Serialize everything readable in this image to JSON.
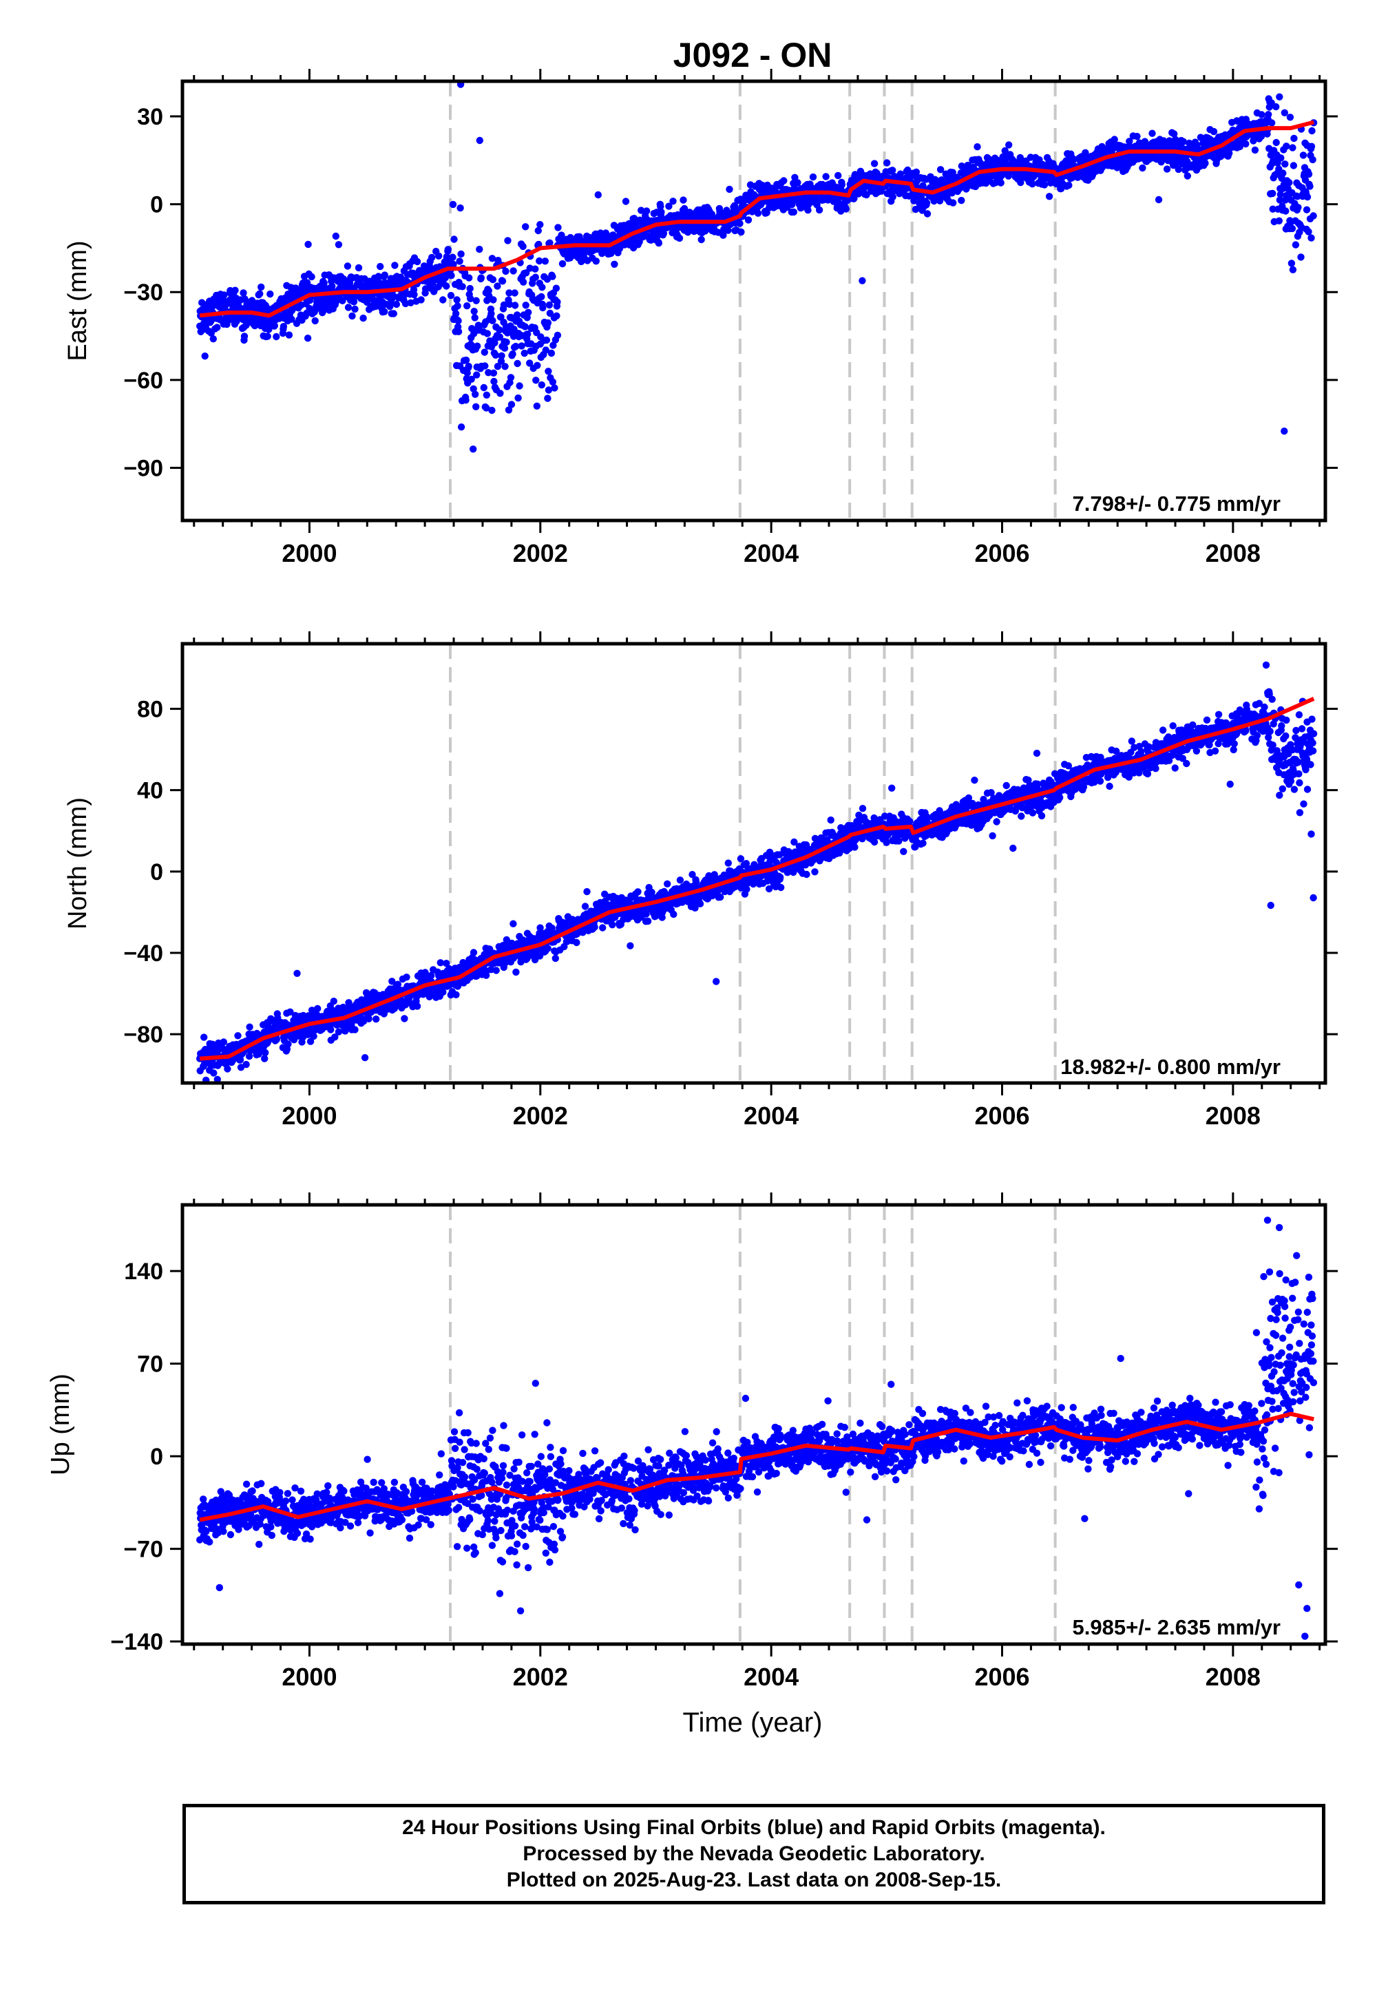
{
  "figure": {
    "title": "J092 - ON",
    "footer": [
      "24 Hour Positions Using Final Orbits (blue) and Rapid Orbits (magenta).",
      "Processed by the Nevada Geodetic Laboratory.",
      "Plotted on 2025-Aug-23. Last data on 2008-Sep-15."
    ]
  },
  "chart_data": [
    {
      "type": "scatter",
      "component": "East",
      "ylabel": "East (mm)",
      "xlabel": "",
      "xlim": [
        1998.9,
        2008.8
      ],
      "ylim": [
        -108,
        42
      ],
      "yticks": [
        -90,
        -60,
        -30,
        0,
        30
      ],
      "xticks": [
        2000,
        2002,
        2004,
        2006,
        2008
      ],
      "rate_label": "7.798+/- 0.775 mm/yr",
      "colors": {
        "points": "#0000ff",
        "model": "#ff0000",
        "steps": "#c8c8c8"
      },
      "step_epochs": [
        2001.22,
        2003.73,
        2004.68,
        2004.98,
        2005.22,
        2006.46
      ],
      "model_x": [
        1999.05,
        1999.3,
        1999.5,
        1999.65,
        1999.8,
        2000.0,
        2000.3,
        2000.5,
        2000.8,
        2001.0,
        2001.2,
        2001.4,
        2001.6,
        2001.8,
        2002.0,
        2002.3,
        2002.6,
        2002.8,
        2003.0,
        2003.2,
        2003.4,
        2003.6,
        2003.73,
        2003.74,
        2003.9,
        2004.1,
        2004.3,
        2004.5,
        2004.67,
        2004.69,
        2004.8,
        2004.97,
        2004.99,
        2005.21,
        2005.23,
        2005.4,
        2005.6,
        2005.8,
        2006.0,
        2006.2,
        2006.45,
        2006.47,
        2006.7,
        2006.9,
        2007.1,
        2007.3,
        2007.5,
        2007.7,
        2007.9,
        2008.1,
        2008.3,
        2008.5,
        2008.7
      ],
      "model_y": [
        -38,
        -37,
        -37,
        -38,
        -35,
        -31,
        -30,
        -30,
        -29,
        -25,
        -22,
        -22,
        -22,
        -19,
        -15,
        -14,
        -14,
        -10,
        -7,
        -6,
        -6,
        -6,
        -4,
        -3,
        2,
        3,
        4,
        4,
        3,
        5,
        8,
        7,
        8,
        7,
        5,
        4,
        7,
        11,
        12,
        12,
        11,
        10,
        13,
        16,
        18,
        18,
        18,
        17,
        20,
        25,
        26,
        26,
        28
      ],
      "scatter_segments": [
        {
          "x": [
            1999.05,
            2001.22
          ],
          "noise": 3.5,
          "outliers": 0.01
        },
        {
          "x": [
            2001.22,
            2002.15
          ],
          "noise": 14,
          "offset": -22,
          "outliers": 0.02
        },
        {
          "x": [
            2002.15,
            2003.73
          ],
          "noise": 2.5,
          "outliers": 0.005
        },
        {
          "x": [
            2003.73,
            2008.3
          ],
          "noise": 2.5,
          "outliers": 0.005
        },
        {
          "x": [
            2008.3,
            2008.7
          ],
          "noise": 12,
          "offset": -20,
          "outliers": 0.03
        }
      ]
    },
    {
      "type": "scatter",
      "component": "North",
      "ylabel": "North (mm)",
      "xlabel": "",
      "xlim": [
        1998.9,
        2008.8
      ],
      "ylim": [
        -104,
        112
      ],
      "yticks": [
        -80,
        -40,
        0,
        40,
        80
      ],
      "xticks": [
        2000,
        2002,
        2004,
        2006,
        2008
      ],
      "rate_label": "18.982+/- 0.800 mm/yr",
      "colors": {
        "points": "#0000ff",
        "model": "#ff0000",
        "steps": "#c8c8c8"
      },
      "step_epochs": [
        2001.22,
        2003.73,
        2004.68,
        2004.98,
        2005.22,
        2006.46
      ],
      "model_x": [
        1999.05,
        1999.3,
        1999.6,
        2000.0,
        2000.3,
        2000.7,
        2001.0,
        2001.3,
        2001.6,
        2002.0,
        2002.3,
        2002.6,
        2003.0,
        2003.4,
        2003.73,
        2003.74,
        2004.0,
        2004.3,
        2004.67,
        2004.69,
        2004.97,
        2004.99,
        2005.21,
        2005.23,
        2005.6,
        2006.0,
        2006.45,
        2006.47,
        2006.8,
        2007.2,
        2007.6,
        2008.0,
        2008.3,
        2008.7
      ],
      "model_y": [
        -92,
        -91,
        -82,
        -75,
        -72,
        -63,
        -56,
        -52,
        -42,
        -36,
        -28,
        -20,
        -15,
        -9,
        -3,
        -2,
        1,
        7,
        17,
        18,
        22,
        21,
        22,
        19,
        27,
        33,
        40,
        41,
        50,
        55,
        64,
        70,
        75,
        85
      ],
      "scatter_segments": [
        {
          "x": [
            1999.05,
            2008.3
          ],
          "noise": 3.5,
          "outliers": 0.01
        },
        {
          "x": [
            2008.3,
            2008.7
          ],
          "noise": 10,
          "offset": -25,
          "outliers": 0.02
        }
      ]
    },
    {
      "type": "scatter",
      "component": "Up",
      "ylabel": "Up (mm)",
      "xlabel": "Time (year)",
      "xlim": [
        1998.9,
        2008.8
      ],
      "ylim": [
        -142,
        190
      ],
      "yticks": [
        -140,
        -70,
        0,
        70,
        140
      ],
      "xticks": [
        2000,
        2002,
        2004,
        2006,
        2008
      ],
      "rate_label": "5.985+/- 2.635 mm/yr",
      "colors": {
        "points": "#0000ff",
        "model": "#ff0000",
        "steps": "#c8c8c8"
      },
      "step_epochs": [
        2001.22,
        2003.73,
        2004.68,
        2004.98,
        2005.22,
        2006.46
      ],
      "model_x": [
        1999.05,
        1999.3,
        1999.6,
        1999.9,
        2000.2,
        2000.5,
        2000.8,
        2001.0,
        2001.3,
        2001.6,
        2001.9,
        2002.2,
        2002.5,
        2002.8,
        2003.1,
        2003.4,
        2003.73,
        2003.74,
        2004.0,
        2004.3,
        2004.67,
        2004.69,
        2004.97,
        2004.99,
        2005.21,
        2005.23,
        2005.6,
        2005.9,
        2006.2,
        2006.45,
        2006.47,
        2006.7,
        2007.0,
        2007.3,
        2007.6,
        2007.9,
        2008.2,
        2008.5,
        2008.7
      ],
      "model_y": [
        -48,
        -44,
        -38,
        -46,
        -40,
        -34,
        -40,
        -36,
        -30,
        -24,
        -32,
        -28,
        -20,
        -26,
        -18,
        -16,
        -12,
        -2,
        2,
        8,
        5,
        6,
        3,
        8,
        6,
        12,
        20,
        14,
        18,
        22,
        20,
        14,
        12,
        20,
        26,
        20,
        25,
        32,
        28
      ],
      "scatter_segments": [
        {
          "x": [
            1999.05,
            2001.22
          ],
          "noise": 8,
          "outliers": 0.01
        },
        {
          "x": [
            2001.22,
            2002.2
          ],
          "noise": 22,
          "outliers": 0.03
        },
        {
          "x": [
            2002.2,
            2003.73
          ],
          "noise": 10,
          "outliers": 0.01
        },
        {
          "x": [
            2003.73,
            2008.2
          ],
          "noise": 8,
          "outliers": 0.01
        },
        {
          "x": [
            2008.2,
            2008.7
          ],
          "noise": 35,
          "offset": 40,
          "outliers": 0.05
        }
      ]
    }
  ]
}
